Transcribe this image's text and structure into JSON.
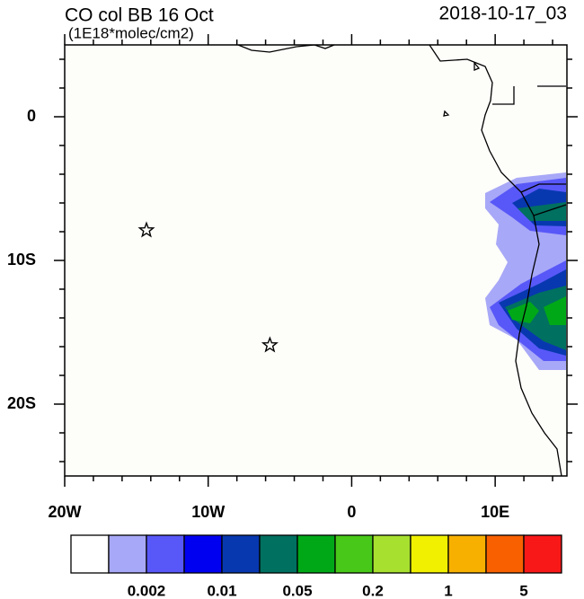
{
  "chart_data": {
    "type": "map",
    "title": "CO col BB 16 Oct",
    "subtitle": "(1E18*molec/cm2)",
    "timestamp": "2018-10-17_03",
    "xlim": [
      -20,
      15
    ],
    "ylim": [
      -25,
      5
    ],
    "xticks": [
      {
        "value": -20,
        "label": "20W"
      },
      {
        "value": -10,
        "label": "10W"
      },
      0,
      {
        "value": 10,
        "label": "10E"
      }
    ],
    "yticks": [
      0,
      {
        "value": -10,
        "label": "10S"
      },
      {
        "value": -20,
        "label": "20S"
      }
    ],
    "xminor": [
      -18,
      -16,
      -14,
      -12,
      -8,
      -6,
      -4,
      -2,
      2,
      4,
      6,
      8,
      12,
      14
    ],
    "yminor": [
      4,
      2,
      -2,
      -4,
      -6,
      -8,
      -12,
      -14,
      -16,
      -18,
      -22,
      -24
    ],
    "markers": [
      {
        "lon": -14.3,
        "lat": -7.9
      },
      {
        "lon": -5.7,
        "lat": -15.9
      }
    ],
    "colorbar": {
      "colors": [
        "#ffffff",
        "#a8a8f8",
        "#5858f8",
        "#0000f0",
        "#0838b0",
        "#007060",
        "#00a818",
        "#48c818",
        "#a8e030",
        "#f0f000",
        "#f8b000",
        "#f86000",
        "#f81818"
      ],
      "labels": [
        "0.002",
        "0.01",
        "0.05",
        "0.2",
        "1",
        "5"
      ]
    }
  }
}
